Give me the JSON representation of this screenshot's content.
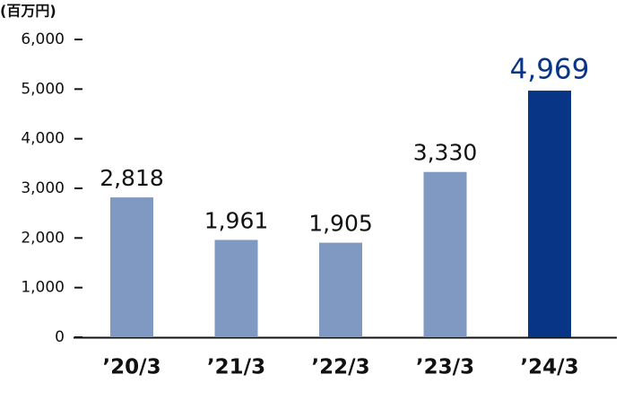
{
  "chart_data": {
    "type": "bar",
    "unit_label": "(百万円)",
    "categories": [
      "’20/3",
      "’21/3",
      "’22/3",
      "’23/3",
      "’24/3"
    ],
    "values": [
      2818,
      1961,
      1905,
      3330,
      4969
    ],
    "value_labels": [
      "2,818",
      "1,961",
      "1,905",
      "3,330",
      "4,969"
    ],
    "colors": [
      "#7f99c2",
      "#7f99c2",
      "#7f99c2",
      "#7f99c2",
      "#083585"
    ],
    "value_label_colors": [
      "#111111",
      "#111111",
      "#111111",
      "#111111",
      "#083585"
    ],
    "ylim": [
      0,
      6000
    ],
    "yticks": [
      {
        "value": 0,
        "label": "0"
      },
      {
        "value": 1000,
        "label": "1,000"
      },
      {
        "value": 2000,
        "label": "2,000"
      },
      {
        "value": 3000,
        "label": "3,000"
      },
      {
        "value": 4000,
        "label": "4,000"
      },
      {
        "value": 5000,
        "label": "5,000"
      },
      {
        "value": 6000,
        "label": "6,000"
      }
    ],
    "grid": false
  }
}
